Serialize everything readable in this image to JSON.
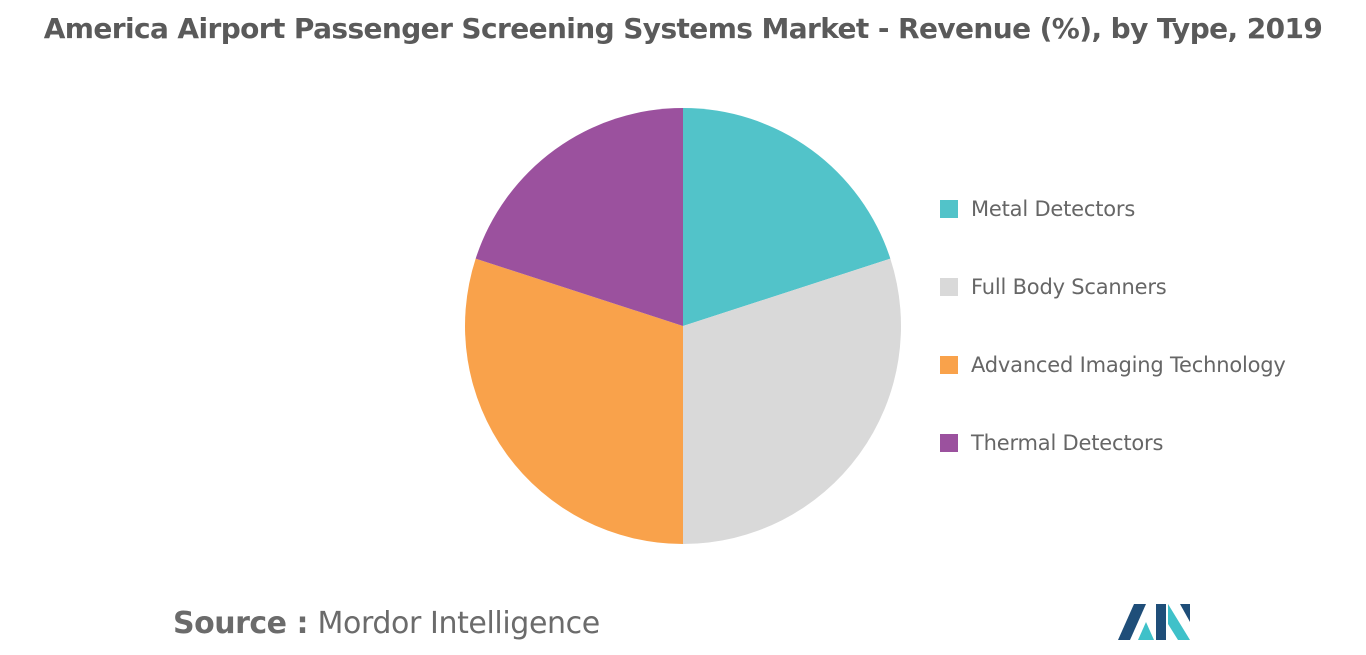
{
  "title": "America Airport Passenger Screening Systems Market - Revenue (%), by Type, 2019",
  "chart_data": {
    "type": "pie",
    "title": "America Airport Passenger Screening Systems Market - Revenue (%), by Type, 2019",
    "categories": [
      "Metal Detectors",
      "Full Body Scanners",
      "Advanced Imaging Technology",
      "Thermal Detectors"
    ],
    "values": [
      20,
      30,
      30,
      20
    ],
    "colors": [
      "#52c3c9",
      "#d9d9d9",
      "#f9a24b",
      "#9b519e"
    ],
    "start_angle": "12 o'clock",
    "direction": "clockwise",
    "legend": "right"
  },
  "legend": {
    "items": [
      {
        "label": "Metal Detectors",
        "color": "#52c3c9"
      },
      {
        "label": "Full Body Scanners",
        "color": "#d9d9d9"
      },
      {
        "label": "Advanced Imaging Technology",
        "color": "#f9a24b"
      },
      {
        "label": "Thermal Detectors",
        "color": "#9b519e"
      }
    ]
  },
  "source": {
    "label": "Source :",
    "value": "Mordor Intelligence"
  },
  "logo": {
    "colors": [
      "#1f4e79",
      "#3fc1c9"
    ]
  }
}
